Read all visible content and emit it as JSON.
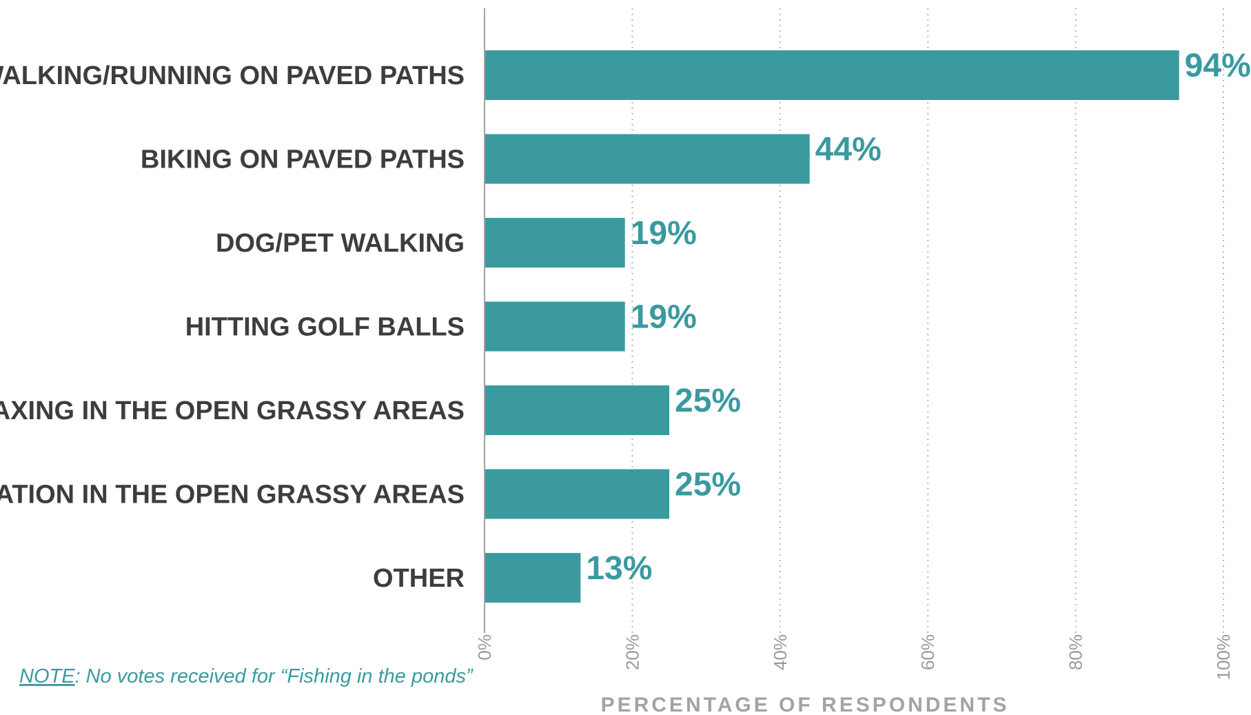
{
  "colors": {
    "bar": "#3a9aa0",
    "value_text": "#3a9aa0",
    "category_text": "#3d3d3d",
    "grid": "#b5b5b5",
    "axis_line": "#a0a0a0",
    "tick_text": "#9a9a9a",
    "note": "#3a9aa0"
  },
  "note": {
    "label": "NOTE",
    "text": ": No votes received for “Fishing in the ponds”"
  },
  "chart_data": {
    "type": "bar",
    "orientation": "horizontal",
    "categories": [
      "WALKING/RUNNING ON PAVED PATHS",
      "BIKING ON PAVED PATHS",
      "DOG/PET WALKING",
      "HITTING GOLF BALLS",
      "RELAXING IN THE OPEN GRASSY AREAS",
      "RECREATION IN THE OPEN GRASSY AREAS",
      "OTHER"
    ],
    "values": [
      94,
      44,
      19,
      19,
      25,
      25,
      13
    ],
    "value_labels": [
      "94%",
      "44%",
      "19%",
      "19%",
      "25%",
      "25%",
      "13%"
    ],
    "xlabel": "PERCENTAGE OF RESPONDENTS",
    "ylabel": "",
    "xlim": [
      0,
      100
    ],
    "ticks": [
      0,
      20,
      40,
      60,
      80,
      100
    ],
    "tick_labels": [
      "0%",
      "20%",
      "40%",
      "60%",
      "80%",
      "100%"
    ],
    "grid": "vertical dotted",
    "legend": "none"
  }
}
